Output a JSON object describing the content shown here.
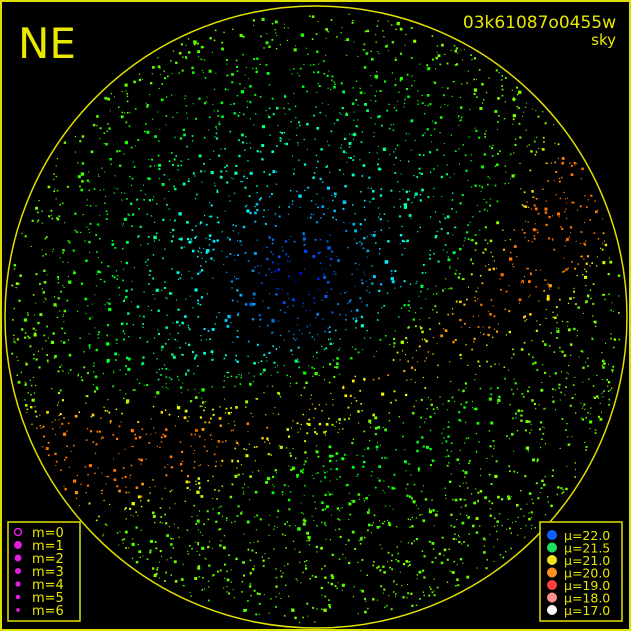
{
  "header": {
    "direction": "NE",
    "field_id": "03k61087o0455w",
    "band": "sky"
  },
  "magnitude_legend": {
    "items": [
      "m=0",
      "m=1",
      "m=2",
      "m=3",
      "m=4",
      "m=5",
      "m=6"
    ]
  },
  "brightness_legend": {
    "items": [
      "μ=22.0",
      "μ=21.5",
      "μ=21.0",
      "μ=20.0",
      "μ=19.0",
      "μ=18.0",
      "μ=17.0"
    ]
  }
}
